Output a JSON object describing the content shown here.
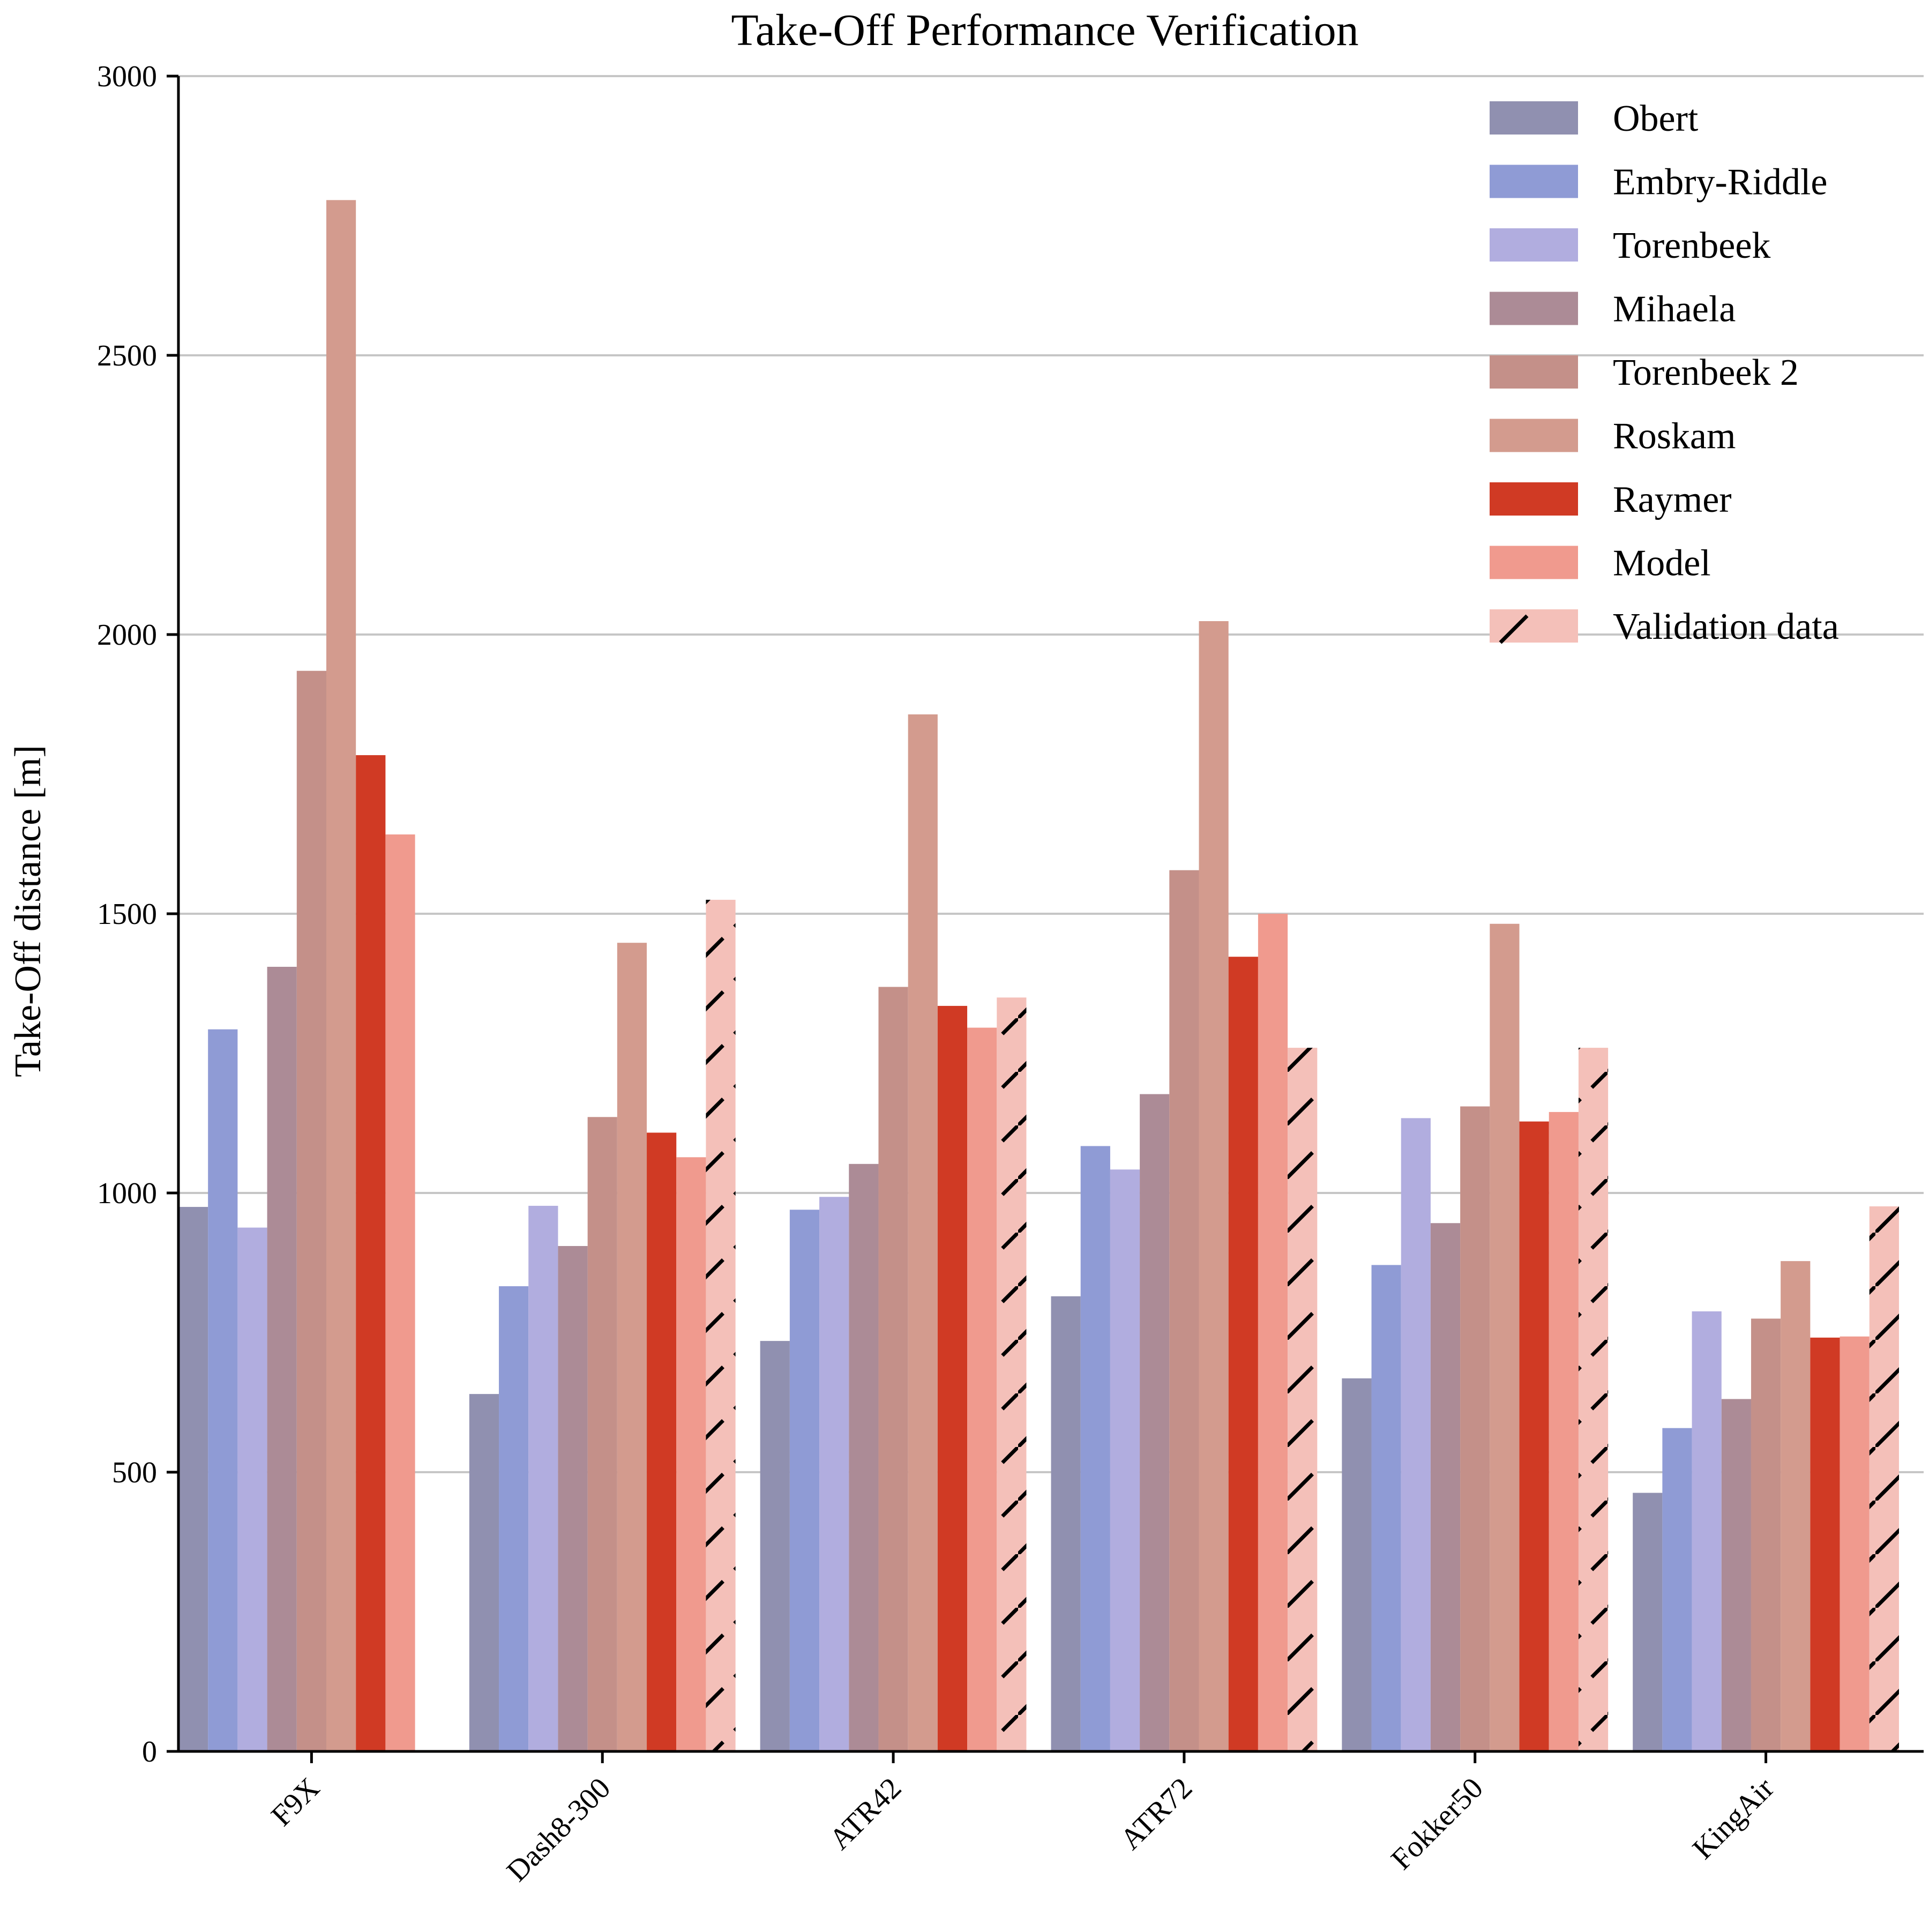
{
  "chart_data": {
    "type": "bar",
    "title": "Take-Off Performance Verification",
    "xlabel": "",
    "ylabel": "Take-Off distance [m]",
    "ylim": [
      0,
      3000
    ],
    "yticks": [
      0,
      500,
      1000,
      1500,
      2000,
      2500,
      3000
    ],
    "grid": "y",
    "legend_position": "top-right",
    "categories": [
      "F9X",
      "Dash8-300",
      "ATR42",
      "ATR72",
      "Fokker50",
      "KingAir"
    ],
    "series": [
      {
        "name": "Obert",
        "color": "#9090b0",
        "hatch": false,
        "values": [
          975,
          640,
          735,
          815,
          668,
          463
        ]
      },
      {
        "name": "Embry-Riddle",
        "color": "#8f9bd5",
        "hatch": false,
        "values": [
          1293,
          833,
          970,
          1084,
          871,
          579
        ]
      },
      {
        "name": "Torenbeek",
        "color": "#b1addf",
        "hatch": false,
        "values": [
          938,
          977,
          993,
          1042,
          1134,
          788
        ]
      },
      {
        "name": "Mihaela",
        "color": "#ac8b96",
        "hatch": false,
        "values": [
          1405,
          905,
          1052,
          1177,
          946,
          631
        ]
      },
      {
        "name": "Torenbeek 2",
        "color": "#c49089",
        "hatch": false,
        "values": [
          1935,
          1136,
          1369,
          1578,
          1155,
          775
        ]
      },
      {
        "name": "Roskam",
        "color": "#d39b8e",
        "hatch": false,
        "values": [
          2778,
          1448,
          1857,
          2024,
          1482,
          878
        ]
      },
      {
        "name": "Raymer",
        "color": "#d03a24",
        "hatch": false,
        "values": [
          1784,
          1108,
          1335,
          1423,
          1128,
          741
        ]
      },
      {
        "name": "Model",
        "color": "#f09a8e",
        "hatch": false,
        "values": [
          1642,
          1064,
          1296,
          1500,
          1145,
          743
        ]
      },
      {
        "name": "Validation data",
        "color": "#f4c0b9",
        "hatch": true,
        "values": [
          null,
          1525,
          1350,
          1260,
          1260,
          976
        ]
      }
    ]
  }
}
